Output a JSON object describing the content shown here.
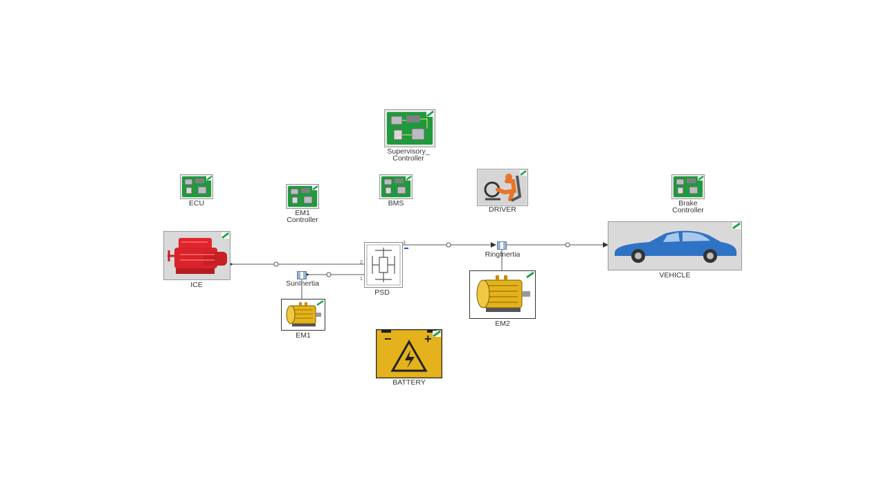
{
  "blocks": {
    "supervisory_controller": {
      "line1": "Supervisory_",
      "line2": "Controller",
      "icon": "circuit-board-icon"
    },
    "ecu": {
      "label": "ECU",
      "icon": "circuit-board-icon"
    },
    "em1_controller": {
      "line1": "EM1",
      "line2": "Controller",
      "icon": "circuit-board-icon"
    },
    "bms": {
      "label": "BMS",
      "icon": "circuit-board-icon"
    },
    "driver": {
      "label": "DRIVER",
      "icon": "driver-seat-icon"
    },
    "brake_controller": {
      "line1": "Brake",
      "line2": "Controller",
      "icon": "circuit-board-icon"
    },
    "ice": {
      "label": "ICE",
      "icon": "engine-icon"
    },
    "psd": {
      "label": "PSD",
      "port1": "1",
      "port2": "2",
      "port3": "3",
      "icon": "planetary-gear-icon"
    },
    "sun_inertia": {
      "label": "SunInertia"
    },
    "ring_inertia": {
      "label": "RingInertia"
    },
    "vehicle": {
      "label": "VEHICLE",
      "icon": "car-icon"
    },
    "em1": {
      "label": "EM1",
      "icon": "electric-motor-icon"
    },
    "em2": {
      "label": "EM2",
      "icon": "electric-motor-icon"
    },
    "battery": {
      "label": "BATTERY",
      "icon": "battery-icon",
      "minus": "−",
      "plus": "+"
    }
  },
  "colors": {
    "board_green": "#1f9a3c",
    "engine_red": "#d8232a",
    "motor_yellow": "#e3b21c",
    "car_blue": "#2f73c4",
    "driver_orange": "#e8742a",
    "frame_gray": "#cfcfcf",
    "check_green": "#19a34a"
  }
}
